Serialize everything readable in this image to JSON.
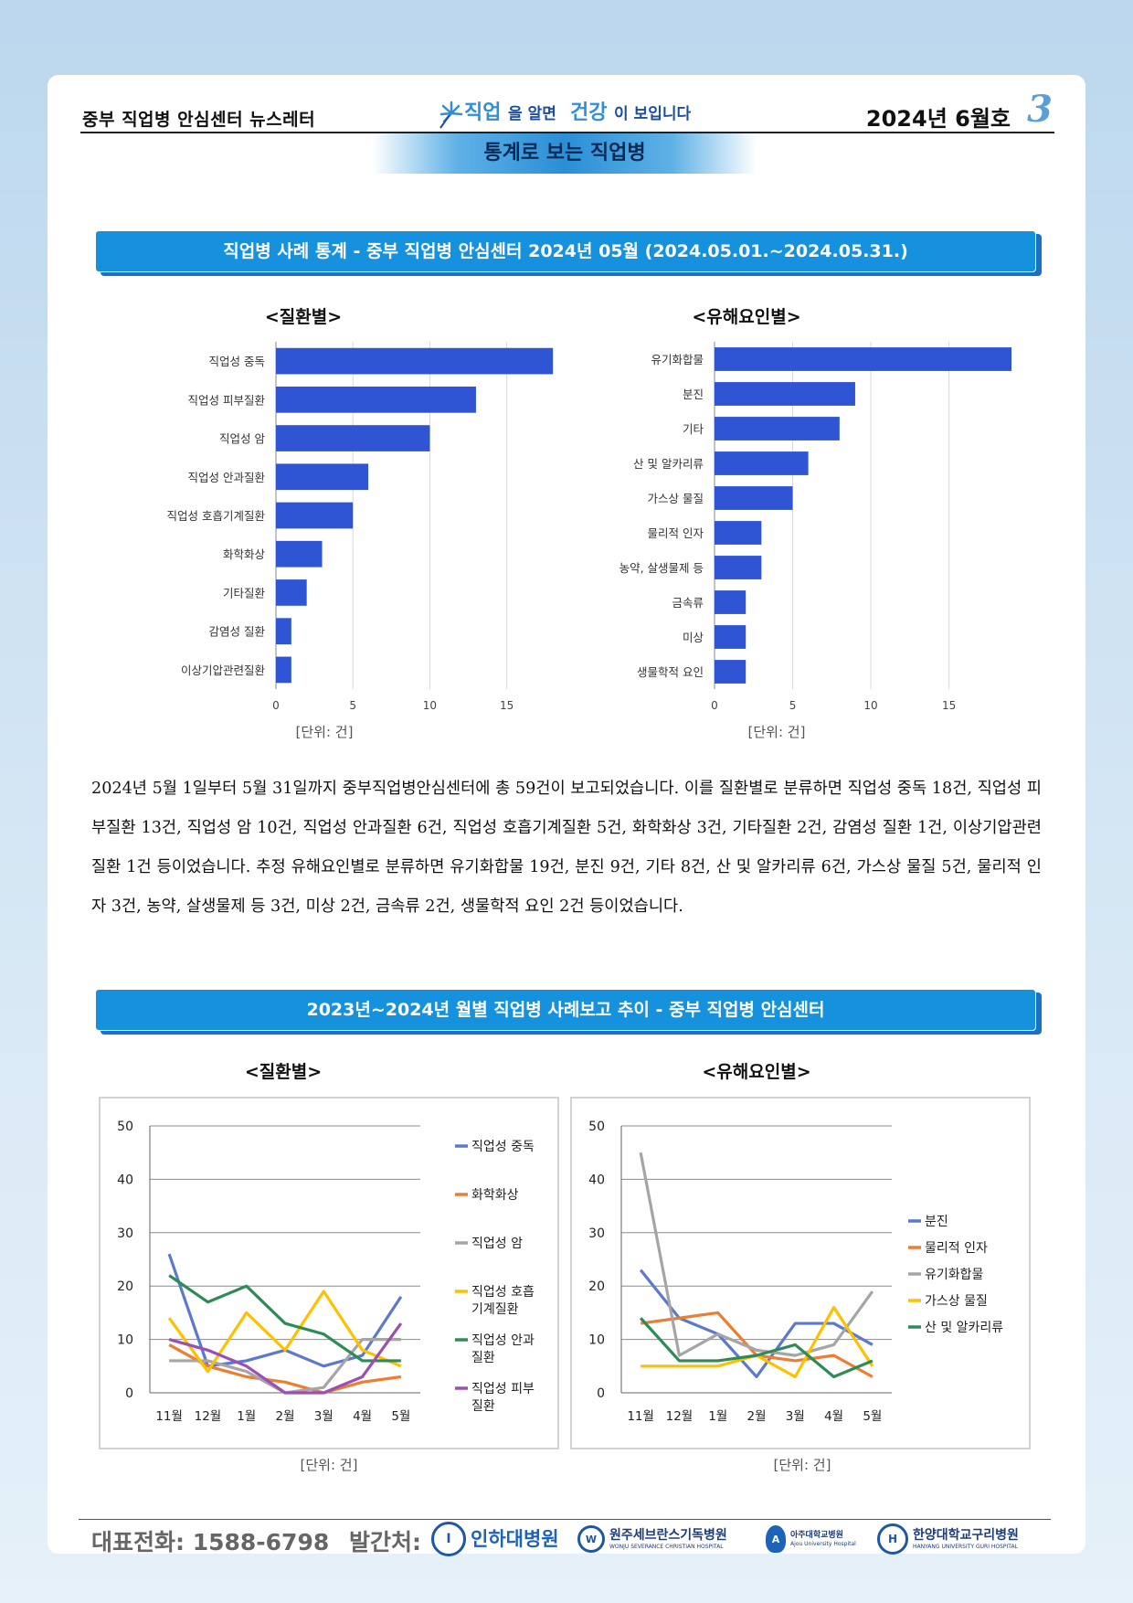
{
  "header": {
    "newsletter": "중부 직업병 안심센터 뉴스레터",
    "slogan_a": "직업",
    "slogan_b": "을 알면 ",
    "slogan_c": "건강",
    "slogan_d": "이 보입니다",
    "issue": "2024년 6월호",
    "page_number": "3",
    "section": "통계로 보는 직업병"
  },
  "banner1": "직업병 사례 통계 - 중부 직업병 안심센터   2024년 05월 (2024.05.01.~2024.05.31.)",
  "bar_disease": {
    "title": "<질환별>",
    "unit": "[단위: 건]",
    "chart_data": {
      "type": "bar",
      "orientation": "horizontal",
      "categories": [
        "직업성 중독",
        "직업성 피부질환",
        "직업성 암",
        "직업성 안과질환",
        "직업성 호흡기계질환",
        "화학화상",
        "기타질환",
        "감염성 질환",
        "이상기압관련질환"
      ],
      "values": [
        18,
        13,
        10,
        6,
        5,
        3,
        2,
        1,
        1
      ],
      "xlim": [
        0,
        19
      ],
      "xticks": [
        0,
        5,
        10,
        15
      ],
      "grid": true,
      "color": "#2f55d4"
    }
  },
  "bar_hazard": {
    "title": "<유해요인별>",
    "unit": "[단위: 건]",
    "chart_data": {
      "type": "bar",
      "orientation": "horizontal",
      "categories": [
        "유기화합물",
        "분진",
        "기타",
        "산 및 알카리류",
        "가스상 물질",
        "물리적 인자",
        "농약, 살생물제 등",
        "금속류",
        "미상",
        "생물학적 요인"
      ],
      "values": [
        19,
        9,
        8,
        6,
        5,
        3,
        3,
        2,
        2,
        2
      ],
      "xlim": [
        0,
        19
      ],
      "xticks": [
        0,
        5,
        10,
        15
      ],
      "grid": true,
      "color": "#2f55d4"
    }
  },
  "paragraph": "2024년 5월 1일부터 5월 31일까지 중부직업병안심센터에 총 59건이 보고되었습니다. 이를 질환별로 분류하면 직업성 중독 18건, 직업성 피부질환 13건, 직업성 암 10건, 직업성 안과질환 6건, 직업성 호흡기계질환 5건, 화학화상 3건, 기타질환 2건, 감염성 질환 1건, 이상기압관련질환 1건 등이었습니다. 추정 유해요인별로 분류하면 유기화합물 19건, 분진 9건, 기타 8건, 산 및 알카리류 6건, 가스상 물질 5건, 물리적 인자 3건, 농약, 살생물제 등 3건, 미상 2건, 금속류 2건, 생물학적 요인 2건 등이었습니다.",
  "banner2": "2023년~2024년 월별 직업병 사례보고 추이 - 중부 직업병 안심센터",
  "line_disease": {
    "title": "<질환별>",
    "unit": "[단위: 건]",
    "chart_data": {
      "type": "line",
      "categories": [
        "11월",
        "12월",
        "1월",
        "2월",
        "3월",
        "4월",
        "5월"
      ],
      "ylim": [
        0,
        50
      ],
      "yticks": [
        0,
        10,
        20,
        30,
        40,
        50
      ],
      "grid": true,
      "legend": "right",
      "series": [
        {
          "name": "직업성 중독",
          "color": "#5b79cf",
          "values": [
            26,
            5,
            6,
            8,
            5,
            7,
            18
          ]
        },
        {
          "name": "화학화상",
          "color": "#ed7d31",
          "values": [
            9,
            5,
            3,
            2,
            0,
            2,
            3
          ]
        },
        {
          "name": "직업성 암",
          "color": "#a5a5a5",
          "values": [
            6,
            6,
            4,
            0,
            1,
            10,
            10
          ]
        },
        {
          "name": "직업성 호흡 기계질환",
          "color": "#ffc000",
          "values": [
            14,
            4,
            15,
            8,
            19,
            8,
            5
          ]
        },
        {
          "name": "직업성 안과 질환",
          "color": "#2e8b57",
          "values": [
            22,
            17,
            20,
            13,
            11,
            6,
            6
          ]
        },
        {
          "name": "직업성 피부 질환",
          "color": "#9b4fb5",
          "values": [
            10,
            8,
            5,
            0,
            0,
            3,
            13
          ]
        }
      ],
      "legend_lines": [
        [
          "직업성 중독"
        ],
        [
          "화학화상"
        ],
        [
          "직업성 암"
        ],
        [
          "직업성 호흡",
          "기계질환"
        ],
        [
          "직업성 안과",
          "질환"
        ],
        [
          "직업성 피부",
          "질환"
        ]
      ]
    }
  },
  "line_hazard": {
    "title": "<유해요인별>",
    "unit": "[단위: 건]",
    "chart_data": {
      "type": "line",
      "categories": [
        "11월",
        "12월",
        "1월",
        "2월",
        "3월",
        "4월",
        "5월"
      ],
      "ylim": [
        0,
        50
      ],
      "yticks": [
        0,
        10,
        20,
        30,
        40,
        50
      ],
      "grid": true,
      "legend": "right",
      "series": [
        {
          "name": "분진",
          "color": "#5b79cf",
          "values": [
            23,
            14,
            11,
            3,
            13,
            13,
            9
          ]
        },
        {
          "name": "물리적 인자",
          "color": "#ed7d31",
          "values": [
            13,
            14,
            15,
            7,
            6,
            7,
            3
          ]
        },
        {
          "name": "유기화합물",
          "color": "#a5a5a5",
          "values": [
            45,
            7,
            11,
            8,
            7,
            9,
            19
          ]
        },
        {
          "name": "가스상 물질",
          "color": "#ffc000",
          "values": [
            5,
            5,
            5,
            7,
            3,
            16,
            5
          ]
        },
        {
          "name": "산 및 알카리류",
          "color": "#2e8b57",
          "values": [
            14,
            6,
            6,
            7,
            9,
            3,
            6
          ]
        }
      ]
    }
  },
  "footer": {
    "phone": "대표전화:  1588-6798",
    "publisher": "발간처:",
    "logos": [
      {
        "name": "인하대병원",
        "mark": "I"
      },
      {
        "name": "원주세브란스기독병원",
        "sub": "WONJU SEVERANCE CHRISTIAN HOSPITAL",
        "mark": "W"
      },
      {
        "name": "아주대학교병원",
        "sub": "Ajou University Hospital",
        "mark": "A"
      },
      {
        "name": "한양대학교구리병원",
        "sub": "HANYANG UNIVERSITY GURI HOSPITAL",
        "mark": "H"
      }
    ]
  }
}
